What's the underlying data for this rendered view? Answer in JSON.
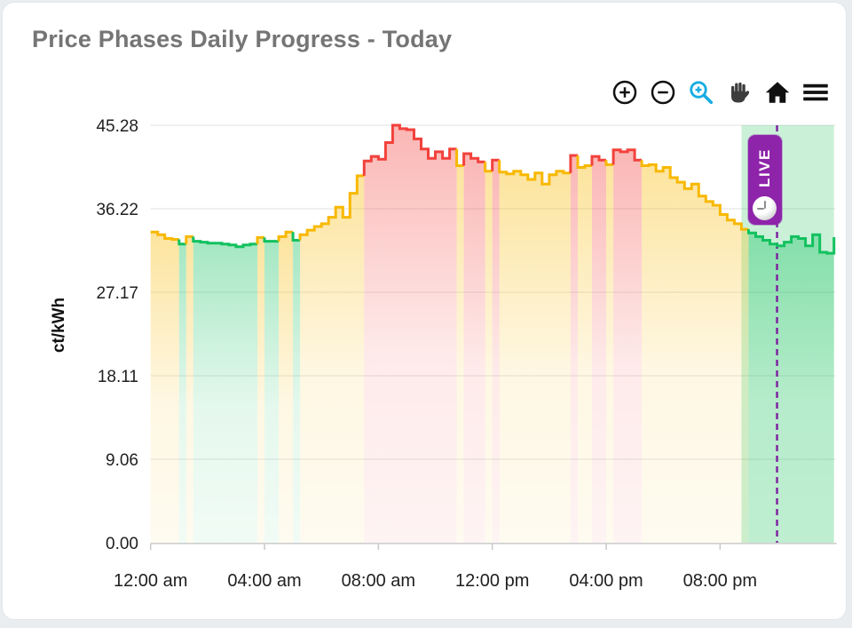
{
  "card": {
    "title": "Price Phases Daily Progress - Today",
    "title_color": "#757575"
  },
  "toolbar": {
    "icons": [
      {
        "name": "zoom-in-icon",
        "color": "#111111"
      },
      {
        "name": "zoom-out-icon",
        "color": "#111111"
      },
      {
        "name": "box-zoom-magnifier-icon",
        "color": "#17ace2"
      },
      {
        "name": "pan-hand-icon",
        "color": "#3d3d3d"
      },
      {
        "name": "home-icon",
        "color": "#111111"
      },
      {
        "name": "menu-icon",
        "color": "#111111"
      }
    ]
  },
  "live_badge": {
    "label": "LIVE",
    "background": "#8e24aa",
    "icon": "clock-icon"
  },
  "chart_data": {
    "type": "area",
    "step": true,
    "title": "Price Phases Daily Progress - Today",
    "xlabel": "",
    "ylabel": "ct/kWh",
    "ylim": [
      0,
      45.28
    ],
    "xlim_hours": [
      0,
      24
    ],
    "grid": "horizontal",
    "y_tick_labels": [
      "45.28",
      "36.22",
      "27.17",
      "18.11",
      "9.06",
      "0.00"
    ],
    "y_tick_values": [
      45.28,
      36.22,
      27.17,
      18.11,
      9.06,
      0
    ],
    "x_tick_labels": [
      "12:00 am",
      "04:00 am",
      "08:00 am",
      "12:00 pm",
      "04:00 pm",
      "08:00 pm"
    ],
    "x_tick_hours": [
      0,
      4,
      8,
      12,
      16,
      20
    ],
    "start": "00:00",
    "interval_minutes": 15,
    "phase_colors": {
      "g": "#12c15f",
      "y": "#f8b800",
      "r": "#f2413c"
    },
    "points": [
      [
        33.7,
        "y"
      ],
      [
        33.4,
        "y"
      ],
      [
        33.0,
        "y"
      ],
      [
        32.9,
        "y"
      ],
      [
        32.4,
        "g"
      ],
      [
        33.2,
        "y"
      ],
      [
        32.7,
        "g"
      ],
      [
        32.6,
        "g"
      ],
      [
        32.5,
        "g"
      ],
      [
        32.5,
        "g"
      ],
      [
        32.4,
        "g"
      ],
      [
        32.3,
        "g"
      ],
      [
        32.1,
        "g"
      ],
      [
        32.3,
        "g"
      ],
      [
        32.4,
        "g"
      ],
      [
        33.1,
        "y"
      ],
      [
        32.7,
        "g"
      ],
      [
        32.7,
        "g"
      ],
      [
        33.2,
        "y"
      ],
      [
        33.7,
        "y"
      ],
      [
        32.8,
        "g"
      ],
      [
        33.4,
        "y"
      ],
      [
        33.9,
        "y"
      ],
      [
        34.3,
        "y"
      ],
      [
        34.6,
        "y"
      ],
      [
        35.3,
        "y"
      ],
      [
        36.4,
        "y"
      ],
      [
        35.3,
        "y"
      ],
      [
        37.9,
        "y"
      ],
      [
        39.8,
        "y"
      ],
      [
        41.4,
        "r"
      ],
      [
        41.9,
        "r"
      ],
      [
        41.6,
        "r"
      ],
      [
        43.4,
        "r"
      ],
      [
        45.28,
        "r"
      ],
      [
        44.9,
        "r"
      ],
      [
        44.8,
        "r"
      ],
      [
        43.8,
        "r"
      ],
      [
        42.7,
        "r"
      ],
      [
        41.7,
        "r"
      ],
      [
        42.4,
        "r"
      ],
      [
        41.7,
        "r"
      ],
      [
        42.7,
        "r"
      ],
      [
        40.9,
        "y"
      ],
      [
        42.2,
        "r"
      ],
      [
        41.7,
        "r"
      ],
      [
        41.3,
        "r"
      ],
      [
        40.3,
        "y"
      ],
      [
        41.5,
        "r"
      ],
      [
        40.2,
        "y"
      ],
      [
        40.0,
        "y"
      ],
      [
        40.3,
        "y"
      ],
      [
        39.9,
        "y"
      ],
      [
        39.4,
        "y"
      ],
      [
        40.1,
        "y"
      ],
      [
        38.9,
        "y"
      ],
      [
        39.9,
        "y"
      ],
      [
        40.3,
        "y"
      ],
      [
        40.1,
        "y"
      ],
      [
        42.0,
        "r"
      ],
      [
        40.7,
        "y"
      ],
      [
        40.9,
        "y"
      ],
      [
        41.9,
        "r"
      ],
      [
        41.5,
        "r"
      ],
      [
        41.0,
        "y"
      ],
      [
        42.6,
        "r"
      ],
      [
        42.4,
        "r"
      ],
      [
        42.6,
        "r"
      ],
      [
        41.5,
        "r"
      ],
      [
        40.9,
        "y"
      ],
      [
        41.0,
        "y"
      ],
      [
        40.3,
        "y"
      ],
      [
        40.7,
        "y"
      ],
      [
        39.6,
        "y"
      ],
      [
        39.1,
        "y"
      ],
      [
        38.4,
        "y"
      ],
      [
        38.9,
        "y"
      ],
      [
        37.6,
        "y"
      ],
      [
        37.0,
        "y"
      ],
      [
        36.6,
        "y"
      ],
      [
        35.6,
        "y"
      ],
      [
        35.0,
        "y"
      ],
      [
        34.6,
        "y"
      ],
      [
        34.0,
        "y"
      ],
      [
        33.6,
        "g"
      ],
      [
        33.2,
        "g"
      ],
      [
        32.8,
        "g"
      ],
      [
        32.4,
        "g"
      ],
      [
        32.2,
        "g"
      ],
      [
        32.6,
        "g"
      ],
      [
        33.2,
        "g"
      ],
      [
        33.0,
        "g"
      ],
      [
        32.2,
        "g"
      ],
      [
        33.4,
        "g"
      ],
      [
        31.5,
        "g"
      ],
      [
        31.4,
        "g"
      ]
    ],
    "end_value": 33.0,
    "live_line": {
      "hour": 22,
      "color": "#7d1fa0",
      "style": "dashed"
    },
    "forecast_band": {
      "start_hour": 20.75,
      "end_hour": 24,
      "color": "rgba(34,197,94,0.24)"
    },
    "legend_position": "none"
  }
}
